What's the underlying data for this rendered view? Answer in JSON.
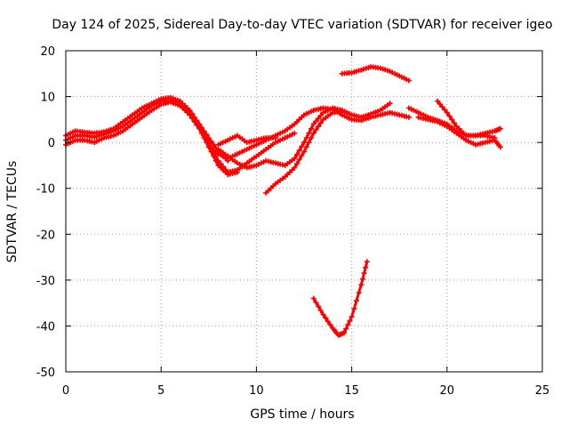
{
  "chart_data": {
    "type": "scatter",
    "title": "Day 124 of 2025, Sidereal Day-to-day VTEC variation (SDTVAR) for receiver igeo",
    "xlabel": "GPS time / hours",
    "ylabel": "SDTVAR / TECUs",
    "xlim": [
      0,
      25
    ],
    "ylim": [
      -50,
      20
    ],
    "grid": true,
    "x_ticks": [
      "0",
      "5",
      "10",
      "15",
      "20",
      "25"
    ],
    "y_ticks": [
      "20",
      "10",
      "0",
      "-10",
      "-20",
      "-30",
      "-40",
      "-50"
    ],
    "marker": "+",
    "series_color": "#ff0000",
    "series": [
      {
        "name": "track-1",
        "x": [
          0,
          0.5,
          1.0,
          1.5,
          2.0,
          2.5,
          3.0,
          3.5,
          4.0,
          4.5,
          5.0,
          5.5,
          6.0,
          6.5,
          7.0,
          7.5,
          8.0,
          8.5,
          9.0,
          9.5,
          10.0,
          10.5,
          11.0,
          11.5,
          12.0
        ],
        "values": [
          0.5,
          1.5,
          1.5,
          1.2,
          1.8,
          2.5,
          3.5,
          5.0,
          6.5,
          8.0,
          9.0,
          9.3,
          8.5,
          6.5,
          3.5,
          0.0,
          -4.0,
          -6.5,
          -6.0,
          -4.5,
          -3.0,
          -1.5,
          0.0,
          1.0,
          2.0
        ]
      },
      {
        "name": "track-2",
        "x": [
          0,
          0.5,
          1.0,
          1.5,
          2.0,
          2.5,
          3.0,
          3.5,
          4.0,
          4.5,
          5.0,
          5.5,
          6.0,
          6.5,
          7.0,
          7.5,
          8.0,
          8.5,
          9.0
        ],
        "values": [
          -0.5,
          0.5,
          0.5,
          0.0,
          1.0,
          1.5,
          2.5,
          4.0,
          5.5,
          7.0,
          8.3,
          8.8,
          8.0,
          6.0,
          3.0,
          -1.0,
          -5.0,
          -7.0,
          -6.5
        ]
      },
      {
        "name": "track-3",
        "x": [
          0,
          0.5,
          1.0,
          1.5,
          2.0,
          2.5,
          3.0,
          3.5,
          4.0,
          4.5,
          5.0,
          5.5,
          6.0,
          6.5,
          7.0,
          7.5,
          8.0,
          8.5
        ],
        "values": [
          1.5,
          2.5,
          2.2,
          2.0,
          2.3,
          3.0,
          4.5,
          6.0,
          7.5,
          8.5,
          9.5,
          9.8,
          9.0,
          7.0,
          4.0,
          1.0,
          -2.0,
          -4.0
        ]
      },
      {
        "name": "track-4",
        "x": [
          7.5,
          8.0,
          8.5,
          9.0,
          9.5,
          10.0,
          10.5,
          11.0,
          11.5,
          12.0,
          12.5,
          13.0,
          13.5,
          14.0,
          14.5,
          15.0,
          15.5,
          16.0,
          16.5,
          17.0,
          17.5,
          18.0
        ],
        "values": [
          -1.0,
          -2.5,
          -3.5,
          -2.5,
          -1.5,
          -0.5,
          0.5,
          1.5,
          2.5,
          4.0,
          6.0,
          7.0,
          7.5,
          7.2,
          6.0,
          5.0,
          4.8,
          5.5,
          6.0,
          6.5,
          6.0,
          5.5
        ]
      },
      {
        "name": "track-5",
        "x": [
          8.0,
          8.5,
          9.0,
          9.5,
          10.0,
          10.5,
          11.0,
          11.5,
          12.0,
          12.5,
          13.0,
          13.5,
          14.0,
          14.5,
          15.0
        ],
        "values": [
          -1.5,
          -3.0,
          -4.5,
          -5.5,
          -5.0,
          -4.0,
          -4.5,
          -5.0,
          -3.5,
          0.0,
          4.0,
          6.5,
          7.5,
          7.0,
          6.0
        ]
      },
      {
        "name": "track-6",
        "x": [
          10.5,
          11.0,
          11.5,
          12.0,
          12.5,
          13.0,
          13.5,
          14.0,
          14.5,
          15.0,
          15.5,
          16.0,
          16.5,
          17.0
        ],
        "values": [
          -11.0,
          -9.0,
          -7.5,
          -5.5,
          -2.0,
          2.0,
          5.0,
          6.5,
          6.8,
          6.0,
          5.5,
          6.2,
          7.0,
          8.5
        ]
      },
      {
        "name": "track-7",
        "x": [
          8.0,
          8.5,
          9.0,
          9.5,
          10.0,
          10.5,
          11.0
        ],
        "values": [
          -0.5,
          0.5,
          1.5,
          0.0,
          0.5,
          1.0,
          1.0
        ]
      },
      {
        "name": "track-8",
        "x": [
          13.0,
          13.5,
          14.0,
          14.3,
          14.6,
          15.0,
          15.5,
          15.8
        ],
        "values": [
          -34.0,
          -37.5,
          -40.5,
          -42.0,
          -41.5,
          -38.0,
          -31.0,
          -26.0
        ]
      },
      {
        "name": "track-9",
        "x": [
          14.5,
          15.0,
          15.5,
          16.0,
          16.5,
          17.0,
          17.5,
          18.0
        ],
        "values": [
          15.0,
          15.2,
          15.8,
          16.5,
          16.2,
          15.5,
          14.5,
          13.5
        ]
      },
      {
        "name": "track-10",
        "x": [
          18.0,
          18.5,
          19.0,
          19.5,
          20.0,
          20.5,
          21.0,
          21.5,
          22.0,
          22.5
        ],
        "values": [
          7.5,
          6.5,
          5.5,
          4.8,
          4.0,
          2.5,
          1.5,
          1.5,
          1.5,
          1.0
        ]
      },
      {
        "name": "track-11",
        "x": [
          19.5,
          20.0,
          20.5,
          21.0,
          21.5,
          22.0,
          22.5,
          22.8
        ],
        "values": [
          9.0,
          6.5,
          3.5,
          1.5,
          1.5,
          2.0,
          2.5,
          3.0
        ]
      },
      {
        "name": "track-12",
        "x": [
          18.5,
          19.0,
          19.5,
          20.0,
          20.5,
          21.0,
          21.5,
          22.0,
          22.5,
          22.8
        ],
        "values": [
          5.5,
          5.0,
          4.5,
          3.5,
          2.0,
          0.5,
          -0.5,
          0.0,
          0.5,
          -1.0
        ]
      }
    ]
  }
}
